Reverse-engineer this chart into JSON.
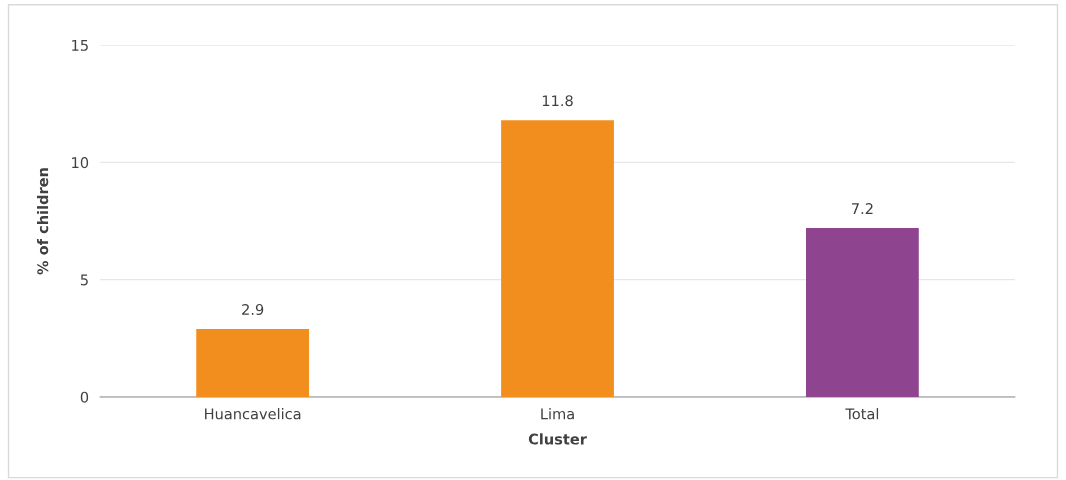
{
  "chart_data": {
    "type": "bar",
    "xlabel": "Cluster",
    "ylabel": "% of children",
    "categories": [
      "Huancavelica",
      "Lima",
      "Total"
    ],
    "values": [
      2.9,
      11.8,
      7.2
    ],
    "colors": [
      "#f28e1e",
      "#f28e1e",
      "#8f448f"
    ],
    "ylim": [
      0,
      15
    ],
    "yticks": [
      0,
      5,
      10,
      15
    ],
    "grid": "y",
    "data_labels": true,
    "legend": false
  }
}
